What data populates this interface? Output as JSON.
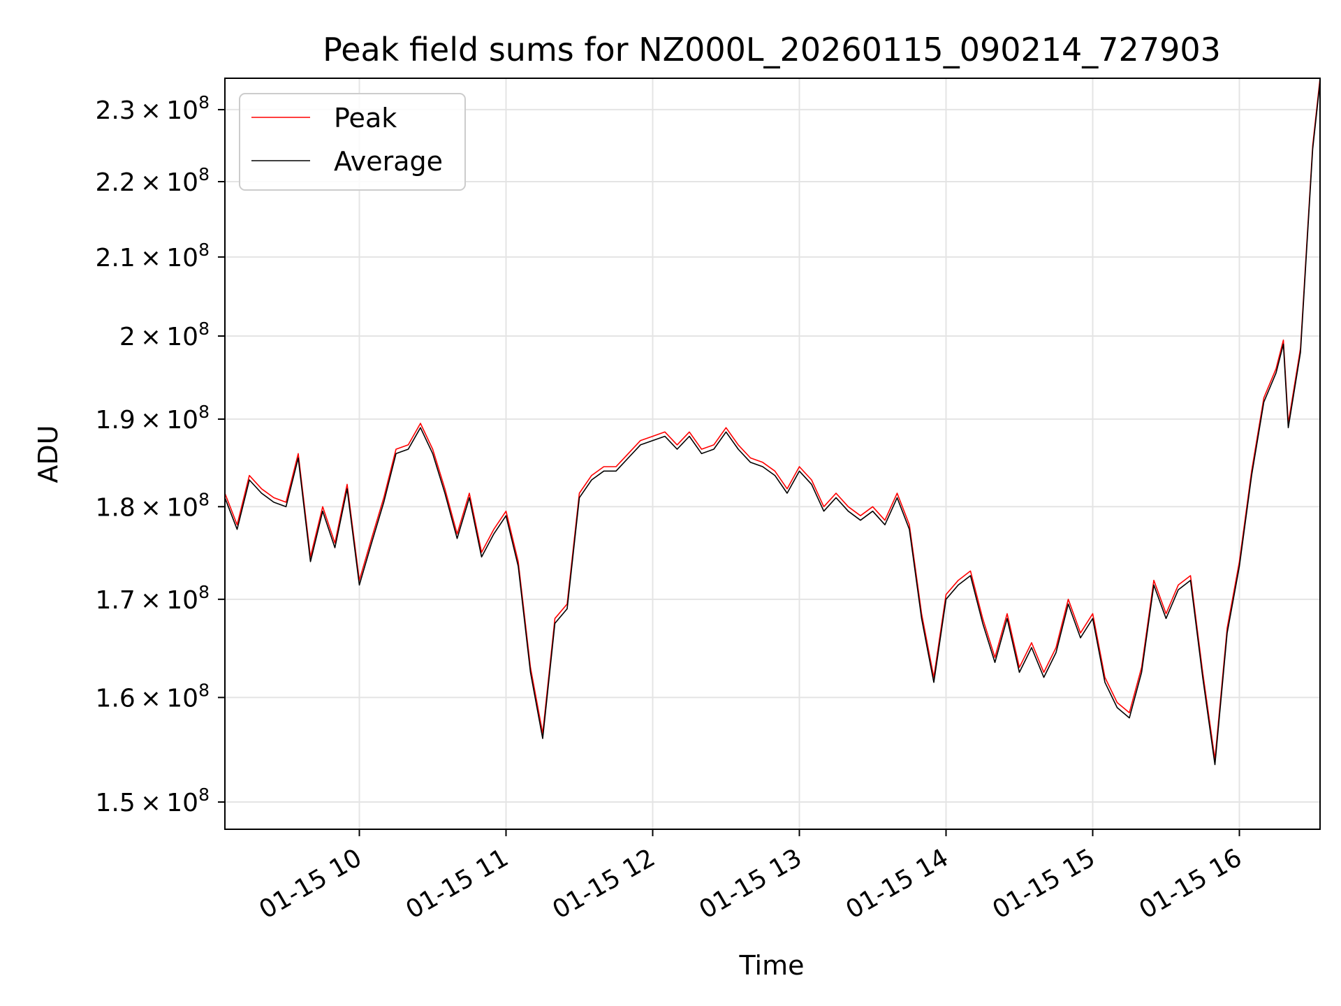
{
  "chart_data": {
    "type": "line",
    "title": "Peak field sums for NZ000L_20260115_090214_727903",
    "xlabel": "Time",
    "ylabel": "ADU",
    "x_axis": {
      "kind": "datetime",
      "range": [
        "2026-01-15 09:05",
        "2026-01-15 16:33"
      ],
      "ticks": [
        {
          "value": "2026-01-15 10:00",
          "label": "01-15 10"
        },
        {
          "value": "2026-01-15 11:00",
          "label": "01-15 11"
        },
        {
          "value": "2026-01-15 12:00",
          "label": "01-15 12"
        },
        {
          "value": "2026-01-15 13:00",
          "label": "01-15 13"
        },
        {
          "value": "2026-01-15 14:00",
          "label": "01-15 14"
        },
        {
          "value": "2026-01-15 15:00",
          "label": "01-15 15"
        },
        {
          "value": "2026-01-15 16:00",
          "label": "01-15 16"
        }
      ]
    },
    "y_axis": {
      "scale": "log",
      "range": [
        147500000,
        234500000
      ],
      "ticks": [
        {
          "value": 150000000,
          "mantissa": "1.5",
          "base": "10",
          "exp": "8"
        },
        {
          "value": 160000000,
          "mantissa": "1.6",
          "base": "10",
          "exp": "8"
        },
        {
          "value": 170000000,
          "mantissa": "1.7",
          "base": "10",
          "exp": "8"
        },
        {
          "value": 180000000,
          "mantissa": "1.8",
          "base": "10",
          "exp": "8"
        },
        {
          "value": 190000000,
          "mantissa": "1.9",
          "base": "10",
          "exp": "8"
        },
        {
          "value": 200000000,
          "mantissa": "2",
          "base": "10",
          "exp": "8"
        },
        {
          "value": 210000000,
          "mantissa": "2.1",
          "base": "10",
          "exp": "8"
        },
        {
          "value": 220000000,
          "mantissa": "2.2",
          "base": "10",
          "exp": "8"
        },
        {
          "value": 230000000,
          "mantissa": "2.3",
          "base": "10",
          "exp": "8"
        }
      ]
    },
    "grid": true,
    "legend_position": "top-left",
    "series": [
      {
        "name": "Peak",
        "color": "#ff0000",
        "points": [
          [
            "2026-01-15 09:05",
            181500000
          ],
          [
            "2026-01-15 09:10",
            178000000
          ],
          [
            "2026-01-15 09:15",
            183500000
          ],
          [
            "2026-01-15 09:20",
            182000000
          ],
          [
            "2026-01-15 09:25",
            181000000
          ],
          [
            "2026-01-15 09:30",
            180500000
          ],
          [
            "2026-01-15 09:35",
            186000000
          ],
          [
            "2026-01-15 09:40",
            174500000
          ],
          [
            "2026-01-15 09:45",
            180000000
          ],
          [
            "2026-01-15 09:50",
            176000000
          ],
          [
            "2026-01-15 09:55",
            182500000
          ],
          [
            "2026-01-15 10:00",
            172000000
          ],
          [
            "2026-01-15 10:05",
            176500000
          ],
          [
            "2026-01-15 10:10",
            181000000
          ],
          [
            "2026-01-15 10:15",
            186500000
          ],
          [
            "2026-01-15 10:20",
            187000000
          ],
          [
            "2026-01-15 10:25",
            189500000
          ],
          [
            "2026-01-15 10:30",
            186500000
          ],
          [
            "2026-01-15 10:35",
            182000000
          ],
          [
            "2026-01-15 10:40",
            177000000
          ],
          [
            "2026-01-15 10:45",
            181500000
          ],
          [
            "2026-01-15 10:50",
            175000000
          ],
          [
            "2026-01-15 10:55",
            177500000
          ],
          [
            "2026-01-15 11:00",
            179500000
          ],
          [
            "2026-01-15 11:05",
            174000000
          ],
          [
            "2026-01-15 11:10",
            163000000
          ],
          [
            "2026-01-15 11:15",
            156500000
          ],
          [
            "2026-01-15 11:20",
            168000000
          ],
          [
            "2026-01-15 11:25",
            169500000
          ],
          [
            "2026-01-15 11:30",
            181500000
          ],
          [
            "2026-01-15 11:35",
            183500000
          ],
          [
            "2026-01-15 11:40",
            184500000
          ],
          [
            "2026-01-15 11:45",
            184500000
          ],
          [
            "2026-01-15 11:50",
            186000000
          ],
          [
            "2026-01-15 11:55",
            187500000
          ],
          [
            "2026-01-15 12:00",
            188000000
          ],
          [
            "2026-01-15 12:05",
            188500000
          ],
          [
            "2026-01-15 12:10",
            187000000
          ],
          [
            "2026-01-15 12:15",
            188500000
          ],
          [
            "2026-01-15 12:20",
            186500000
          ],
          [
            "2026-01-15 12:25",
            187000000
          ],
          [
            "2026-01-15 12:30",
            189000000
          ],
          [
            "2026-01-15 12:35",
            187000000
          ],
          [
            "2026-01-15 12:40",
            185500000
          ],
          [
            "2026-01-15 12:45",
            185000000
          ],
          [
            "2026-01-15 12:50",
            184000000
          ],
          [
            "2026-01-15 12:55",
            182000000
          ],
          [
            "2026-01-15 13:00",
            184500000
          ],
          [
            "2026-01-15 13:05",
            183000000
          ],
          [
            "2026-01-15 13:10",
            180000000
          ],
          [
            "2026-01-15 13:15",
            181500000
          ],
          [
            "2026-01-15 13:20",
            180000000
          ],
          [
            "2026-01-15 13:25",
            179000000
          ],
          [
            "2026-01-15 13:30",
            180000000
          ],
          [
            "2026-01-15 13:35",
            178500000
          ],
          [
            "2026-01-15 13:40",
            181500000
          ],
          [
            "2026-01-15 13:45",
            178000000
          ],
          [
            "2026-01-15 13:50",
            168500000
          ],
          [
            "2026-01-15 13:55",
            162000000
          ],
          [
            "2026-01-15 14:00",
            170500000
          ],
          [
            "2026-01-15 14:05",
            172000000
          ],
          [
            "2026-01-15 14:10",
            173000000
          ],
          [
            "2026-01-15 14:15",
            168000000
          ],
          [
            "2026-01-15 14:20",
            164000000
          ],
          [
            "2026-01-15 14:25",
            168500000
          ],
          [
            "2026-01-15 14:30",
            163000000
          ],
          [
            "2026-01-15 14:35",
            165500000
          ],
          [
            "2026-01-15 14:40",
            162500000
          ],
          [
            "2026-01-15 14:45",
            165000000
          ],
          [
            "2026-01-15 14:50",
            170000000
          ],
          [
            "2026-01-15 14:55",
            166500000
          ],
          [
            "2026-01-15 15:00",
            168500000
          ],
          [
            "2026-01-15 15:05",
            162000000
          ],
          [
            "2026-01-15 15:10",
            159500000
          ],
          [
            "2026-01-15 15:15",
            158500000
          ],
          [
            "2026-01-15 15:20",
            163000000
          ],
          [
            "2026-01-15 15:25",
            172000000
          ],
          [
            "2026-01-15 15:30",
            168500000
          ],
          [
            "2026-01-15 15:35",
            171500000
          ],
          [
            "2026-01-15 15:40",
            172500000
          ],
          [
            "2026-01-15 15:45",
            162500000
          ],
          [
            "2026-01-15 15:50",
            154000000
          ],
          [
            "2026-01-15 15:55",
            167000000
          ],
          [
            "2026-01-15 16:00",
            174000000
          ],
          [
            "2026-01-15 16:05",
            184000000
          ],
          [
            "2026-01-15 16:10",
            192500000
          ],
          [
            "2026-01-15 16:15",
            196000000
          ],
          [
            "2026-01-15 16:18",
            199500000
          ],
          [
            "2026-01-15 16:20",
            189500000
          ],
          [
            "2026-01-15 16:25",
            198500000
          ],
          [
            "2026-01-15 16:30",
            225000000
          ],
          [
            "2026-01-15 16:33",
            234500000
          ]
        ]
      },
      {
        "name": "Average",
        "color": "#000000",
        "points": [
          [
            "2026-01-15 09:05",
            181000000
          ],
          [
            "2026-01-15 09:10",
            177500000
          ],
          [
            "2026-01-15 09:15",
            183000000
          ],
          [
            "2026-01-15 09:20",
            181500000
          ],
          [
            "2026-01-15 09:25",
            180500000
          ],
          [
            "2026-01-15 09:30",
            180000000
          ],
          [
            "2026-01-15 09:35",
            185500000
          ],
          [
            "2026-01-15 09:40",
            174000000
          ],
          [
            "2026-01-15 09:45",
            179500000
          ],
          [
            "2026-01-15 09:50",
            175500000
          ],
          [
            "2026-01-15 09:55",
            182000000
          ],
          [
            "2026-01-15 10:00",
            171500000
          ],
          [
            "2026-01-15 10:05",
            176000000
          ],
          [
            "2026-01-15 10:10",
            180500000
          ],
          [
            "2026-01-15 10:15",
            186000000
          ],
          [
            "2026-01-15 10:20",
            186500000
          ],
          [
            "2026-01-15 10:25",
            189000000
          ],
          [
            "2026-01-15 10:30",
            186000000
          ],
          [
            "2026-01-15 10:35",
            181500000
          ],
          [
            "2026-01-15 10:40",
            176500000
          ],
          [
            "2026-01-15 10:45",
            181000000
          ],
          [
            "2026-01-15 10:50",
            174500000
          ],
          [
            "2026-01-15 10:55",
            177000000
          ],
          [
            "2026-01-15 11:00",
            179000000
          ],
          [
            "2026-01-15 11:05",
            173500000
          ],
          [
            "2026-01-15 11:10",
            162500000
          ],
          [
            "2026-01-15 11:15",
            156000000
          ],
          [
            "2026-01-15 11:20",
            167500000
          ],
          [
            "2026-01-15 11:25",
            169000000
          ],
          [
            "2026-01-15 11:30",
            181000000
          ],
          [
            "2026-01-15 11:35",
            183000000
          ],
          [
            "2026-01-15 11:40",
            184000000
          ],
          [
            "2026-01-15 11:45",
            184000000
          ],
          [
            "2026-01-15 11:50",
            185500000
          ],
          [
            "2026-01-15 11:55",
            187000000
          ],
          [
            "2026-01-15 12:00",
            187500000
          ],
          [
            "2026-01-15 12:05",
            188000000
          ],
          [
            "2026-01-15 12:10",
            186500000
          ],
          [
            "2026-01-15 12:15",
            188000000
          ],
          [
            "2026-01-15 12:20",
            186000000
          ],
          [
            "2026-01-15 12:25",
            186500000
          ],
          [
            "2026-01-15 12:30",
            188500000
          ],
          [
            "2026-01-15 12:35",
            186500000
          ],
          [
            "2026-01-15 12:40",
            185000000
          ],
          [
            "2026-01-15 12:45",
            184500000
          ],
          [
            "2026-01-15 12:50",
            183500000
          ],
          [
            "2026-01-15 12:55",
            181500000
          ],
          [
            "2026-01-15 13:00",
            184000000
          ],
          [
            "2026-01-15 13:05",
            182500000
          ],
          [
            "2026-01-15 13:10",
            179500000
          ],
          [
            "2026-01-15 13:15",
            181000000
          ],
          [
            "2026-01-15 13:20",
            179500000
          ],
          [
            "2026-01-15 13:25",
            178500000
          ],
          [
            "2026-01-15 13:30",
            179500000
          ],
          [
            "2026-01-15 13:35",
            178000000
          ],
          [
            "2026-01-15 13:40",
            181000000
          ],
          [
            "2026-01-15 13:45",
            177500000
          ],
          [
            "2026-01-15 13:50",
            168000000
          ],
          [
            "2026-01-15 13:55",
            161500000
          ],
          [
            "2026-01-15 14:00",
            170000000
          ],
          [
            "2026-01-15 14:05",
            171500000
          ],
          [
            "2026-01-15 14:10",
            172500000
          ],
          [
            "2026-01-15 14:15",
            167500000
          ],
          [
            "2026-01-15 14:20",
            163500000
          ],
          [
            "2026-01-15 14:25",
            168000000
          ],
          [
            "2026-01-15 14:30",
            162500000
          ],
          [
            "2026-01-15 14:35",
            165000000
          ],
          [
            "2026-01-15 14:40",
            162000000
          ],
          [
            "2026-01-15 14:45",
            164500000
          ],
          [
            "2026-01-15 14:50",
            169500000
          ],
          [
            "2026-01-15 14:55",
            166000000
          ],
          [
            "2026-01-15 15:00",
            168000000
          ],
          [
            "2026-01-15 15:05",
            161500000
          ],
          [
            "2026-01-15 15:10",
            159000000
          ],
          [
            "2026-01-15 15:15",
            158000000
          ],
          [
            "2026-01-15 15:20",
            162500000
          ],
          [
            "2026-01-15 15:25",
            171500000
          ],
          [
            "2026-01-15 15:30",
            168000000
          ],
          [
            "2026-01-15 15:35",
            171000000
          ],
          [
            "2026-01-15 15:40",
            172000000
          ],
          [
            "2026-01-15 15:45",
            162000000
          ],
          [
            "2026-01-15 15:50",
            153500000
          ],
          [
            "2026-01-15 15:55",
            166500000
          ],
          [
            "2026-01-15 16:00",
            173500000
          ],
          [
            "2026-01-15 16:05",
            183500000
          ],
          [
            "2026-01-15 16:10",
            192000000
          ],
          [
            "2026-01-15 16:15",
            195500000
          ],
          [
            "2026-01-15 16:18",
            199000000
          ],
          [
            "2026-01-15 16:20",
            189000000
          ],
          [
            "2026-01-15 16:25",
            198000000
          ],
          [
            "2026-01-15 16:30",
            224500000
          ],
          [
            "2026-01-15 16:33",
            234000000
          ]
        ]
      }
    ]
  }
}
